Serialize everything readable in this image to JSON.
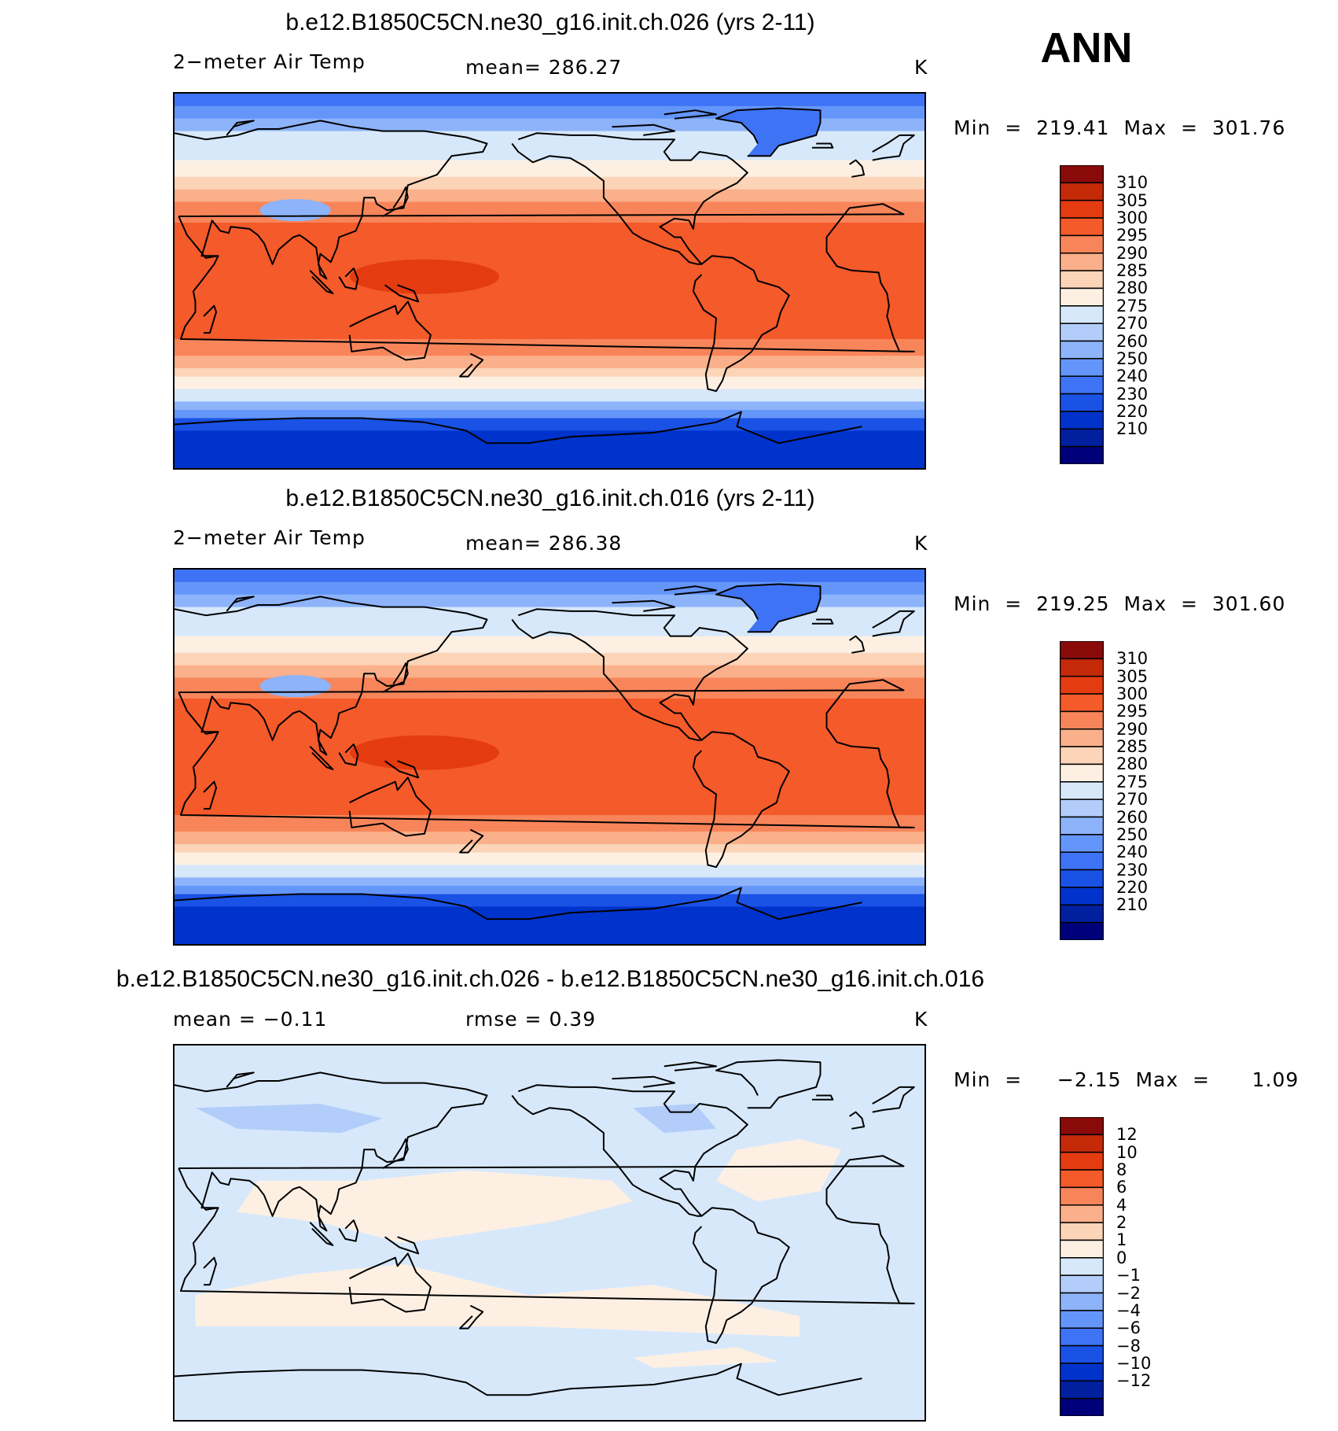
{
  "season": "ANN",
  "colors": {
    "abs_scale": [
      "#00007a",
      "#0020a0",
      "#0033cc",
      "#1a52e6",
      "#3f73f5",
      "#6496fa",
      "#8db3fa",
      "#b3cdfa",
      "#d7e8fb",
      "#fdf0e3",
      "#fcd4b8",
      "#fab08a",
      "#f8855a",
      "#f45a2a",
      "#e43b10",
      "#c42a08",
      "#8a0a0a"
    ],
    "diff_scale": [
      "#00007a",
      "#0020a0",
      "#0033cc",
      "#1a52e6",
      "#3f73f5",
      "#6496fa",
      "#8db3fa",
      "#b3cdfa",
      "#d7e8fb",
      "#fdf0e3",
      "#fcd4b8",
      "#fab08a",
      "#f8855a",
      "#f45a2a",
      "#e43b10",
      "#c42a08",
      "#8a0a0a"
    ],
    "coastline": "#000000"
  },
  "panels": [
    {
      "title": "b.e12.B1850C5CN.ne30_g16.init.ch.026 (yrs 2-11)",
      "left_label": "2−meter Air Temp",
      "center_label": "mean=  286.27",
      "units": "K",
      "minmax": "Min  =  219.41  Max  =  301.76",
      "colorbar_labels": [
        "310",
        "305",
        "300",
        "295",
        "290",
        "285",
        "280",
        "275",
        "270",
        "260",
        "250",
        "240",
        "230",
        "220",
        "210"
      ],
      "kind": "abs"
    },
    {
      "title": "b.e12.B1850C5CN.ne30_g16.init.ch.016 (yrs 2-11)",
      "left_label": "2−meter Air Temp",
      "center_label": "mean=  286.38",
      "units": "K",
      "minmax": "Min  =  219.25  Max  =  301.60",
      "colorbar_labels": [
        "310",
        "305",
        "300",
        "295",
        "290",
        "285",
        "280",
        "275",
        "270",
        "260",
        "250",
        "240",
        "230",
        "220",
        "210"
      ],
      "kind": "abs"
    },
    {
      "title": "b.e12.B1850C5CN.ne30_g16.init.ch.026 - b.e12.B1850C5CN.ne30_g16.init.ch.016",
      "left_label": "mean  =     −0.11",
      "center_label": "rmse  =      0.39",
      "units": "K",
      "minmax": "Min  =     −2.15  Max  =      1.09",
      "colorbar_labels": [
        "12",
        "10",
        "8",
        "6",
        "4",
        "2",
        "1",
        "0",
        "−1",
        "−2",
        "−4",
        "−6",
        "−8",
        "−10",
        "−12"
      ],
      "kind": "diff"
    }
  ]
}
